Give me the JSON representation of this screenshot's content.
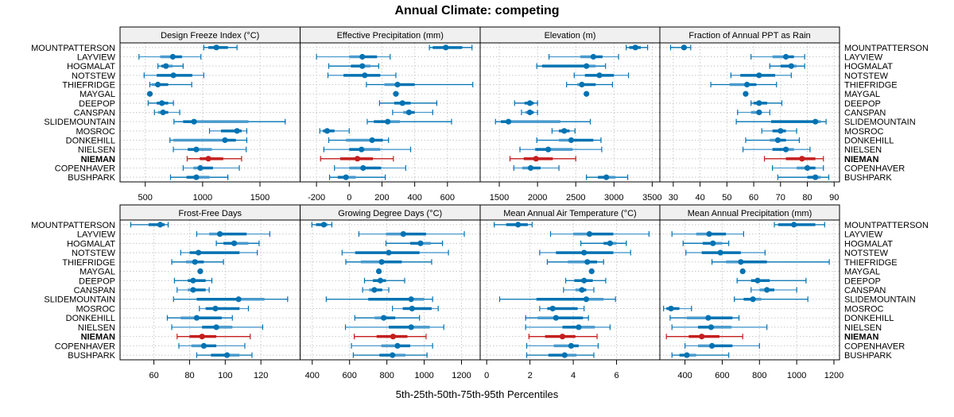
{
  "chart_data": {
    "type": "dot-whisker",
    "title": "Annual Climate: competing",
    "xlabel": "5th-25th-50th-75th-95th Percentiles",
    "highlight": "NIEMAN",
    "colors": {
      "normal": "#0072B2",
      "normal_light": "#4A9ACD",
      "highlight": "#C41E1E",
      "highlight_light": "#D96A6A",
      "strip_bg": "#F0F0F0",
      "grid": "#C8C8C8"
    },
    "categories": [
      "MOUNTPATTERSON",
      "LAYVIEW",
      "HOGMALAT",
      "NOTSTEW",
      "THIEFRIDGE",
      "MAYGAL",
      "DEEPOP",
      "CANSPAN",
      "SLIDEMOUNTAIN",
      "MOSROC",
      "DONKEHILL",
      "NIELSEN",
      "NIEMAN",
      "COPENHAVER",
      "BUSHPARK"
    ],
    "panels": [
      {
        "name": "Design Freeze Index (°C)",
        "ticks": [
          500,
          1000,
          1500
        ],
        "xlim": [
          280,
          1850
        ],
        "values": [
          [
            1010,
            1050,
            1120,
            1220,
            1300
          ],
          [
            445,
            630,
            740,
            820,
            985
          ],
          [
            610,
            640,
            680,
            740,
            830
          ],
          [
            490,
            600,
            745,
            910,
            1010
          ],
          [
            540,
            555,
            610,
            700,
            905
          ],
          [
            540,
            540,
            540,
            540,
            540
          ],
          [
            525,
            600,
            645,
            700,
            745
          ],
          [
            580,
            610,
            655,
            700,
            800
          ],
          [
            750,
            830,
            925,
            1400,
            1720
          ],
          [
            1060,
            1160,
            1300,
            1340,
            1385
          ],
          [
            715,
            745,
            1195,
            1290,
            1385
          ],
          [
            745,
            870,
            945,
            1080,
            1380
          ],
          [
            865,
            975,
            1050,
            1180,
            1340
          ],
          [
            830,
            920,
            980,
            1090,
            1320
          ],
          [
            720,
            860,
            945,
            1060,
            1220
          ]
        ]
      },
      {
        "name": "Effective Precipitation (mm)",
        "ticks": [
          -200,
          0,
          200,
          400,
          600
        ],
        "xlim": [
          -300,
          800
        ],
        "values": [
          [
            490,
            510,
            590,
            690,
            750
          ],
          [
            -200,
            0,
            80,
            170,
            250
          ],
          [
            -125,
            10,
            80,
            130,
            180
          ],
          [
            -130,
            -35,
            95,
            190,
            285
          ],
          [
            105,
            215,
            295,
            400,
            755
          ],
          [
            285,
            285,
            285,
            285,
            285
          ],
          [
            185,
            275,
            325,
            375,
            535
          ],
          [
            265,
            330,
            365,
            400,
            510
          ],
          [
            110,
            150,
            235,
            310,
            625
          ],
          [
            -180,
            -160,
            -135,
            -90,
            0
          ],
          [
            -125,
            -20,
            140,
            205,
            240
          ],
          [
            -155,
            0,
            75,
            190,
            375
          ],
          [
            -175,
            -55,
            50,
            145,
            270
          ],
          [
            -90,
            0,
            85,
            195,
            345
          ],
          [
            -120,
            -70,
            -20,
            40,
            220
          ]
        ]
      },
      {
        "name": "Elevation (m)",
        "ticks": [
          1500,
          2000,
          2500,
          3000,
          3500
        ],
        "xlim": [
          1250,
          3600
        ],
        "values": [
          [
            3160,
            3200,
            3280,
            3350,
            3440
          ],
          [
            2150,
            2560,
            2730,
            2850,
            3060
          ],
          [
            1990,
            2060,
            2640,
            2760,
            2890
          ],
          [
            2480,
            2620,
            2810,
            3000,
            3190
          ],
          [
            2380,
            2520,
            2580,
            2760,
            2980
          ],
          [
            2640,
            2640,
            2640,
            2640,
            2640
          ],
          [
            1700,
            1830,
            1900,
            1950,
            2000
          ],
          [
            1790,
            1840,
            1900,
            1950,
            2000
          ],
          [
            1450,
            1520,
            1620,
            2300,
            2690
          ],
          [
            2190,
            2280,
            2350,
            2420,
            2490
          ],
          [
            1990,
            2280,
            2440,
            2730,
            2830
          ],
          [
            1770,
            1970,
            2140,
            2460,
            2840
          ],
          [
            1640,
            1820,
            1980,
            2200,
            2500
          ],
          [
            1690,
            1800,
            1910,
            2040,
            2280
          ],
          [
            2640,
            2790,
            2900,
            3020,
            3180
          ]
        ]
      },
      {
        "name": "Fraction of Annual PPT as Rain",
        "ticks": [
          30,
          40,
          50,
          60,
          70,
          80,
          90
        ],
        "xlim": [
          25,
          92
        ],
        "values": [
          [
            29,
            33,
            34,
            35,
            36.5
          ],
          [
            59,
            67,
            72,
            75,
            79
          ],
          [
            66,
            70,
            74,
            76,
            79
          ],
          [
            51.5,
            55,
            62,
            68,
            74
          ],
          [
            44,
            51,
            57.5,
            61,
            68.5
          ],
          [
            57,
            57,
            57,
            57,
            57
          ],
          [
            59,
            60,
            62,
            65,
            70.5
          ],
          [
            54,
            59,
            62,
            63,
            66
          ],
          [
            53.5,
            66.5,
            83,
            85,
            87
          ],
          [
            63,
            67,
            70,
            72,
            76
          ],
          [
            57,
            66,
            69,
            72,
            77
          ],
          [
            56,
            67,
            72,
            75,
            81
          ],
          [
            64,
            72,
            78,
            83,
            86
          ],
          [
            67,
            76,
            80,
            83,
            86
          ],
          [
            69,
            80,
            83,
            85,
            88
          ]
        ]
      },
      {
        "name": "Frost-Free Days",
        "ticks": [
          60,
          80,
          100,
          120
        ],
        "xlim": [
          41,
          142
        ],
        "values": [
          [
            47,
            57,
            63.5,
            66,
            68
          ],
          [
            84,
            91,
            97,
            112,
            125
          ],
          [
            95,
            99,
            105,
            113,
            119
          ],
          [
            75,
            80,
            85,
            108,
            118
          ],
          [
            70,
            78,
            83,
            88,
            99
          ],
          [
            86,
            86,
            86,
            86,
            86
          ],
          [
            71.5,
            79,
            82,
            89,
            92.5
          ],
          [
            73,
            79,
            82,
            89,
            91
          ],
          [
            71,
            84,
            107.5,
            122,
            135
          ],
          [
            85.5,
            89,
            94.5,
            108,
            113
          ],
          [
            67.5,
            75,
            84,
            98,
            104
          ],
          [
            70,
            87,
            95,
            104,
            121
          ],
          [
            73,
            80,
            87,
            95,
            114
          ],
          [
            74,
            81,
            88,
            95,
            111
          ],
          [
            84,
            92,
            101,
            108,
            115
          ]
        ]
      },
      {
        "name": "Growing Degree Days (°C)",
        "ticks": [
          400,
          600,
          800,
          1000,
          1200
        ],
        "xlim": [
          335,
          1300
        ],
        "values": [
          [
            398,
            420,
            462,
            480,
            505
          ],
          [
            650,
            795,
            888,
            1010,
            1215
          ],
          [
            795,
            925,
            980,
            1035,
            1098
          ],
          [
            560,
            630,
            810,
            975,
            1130
          ],
          [
            580,
            660,
            772,
            880,
            1040
          ],
          [
            757,
            757,
            757,
            757,
            757
          ],
          [
            680,
            725,
            765,
            795,
            895
          ],
          [
            670,
            705,
            733,
            775,
            810
          ],
          [
            475,
            700,
            930,
            1000,
            1045
          ],
          [
            830,
            885,
            935,
            1040,
            1075
          ],
          [
            628,
            735,
            783,
            845,
            975
          ],
          [
            578,
            810,
            930,
            1030,
            1105
          ],
          [
            625,
            745,
            833,
            910,
            1010
          ],
          [
            610,
            770,
            857,
            925,
            1045
          ],
          [
            620,
            760,
            830,
            900,
            1015
          ]
        ]
      },
      {
        "name": "Mean Annual Air Temperature (°C)",
        "ticks": [
          0,
          2,
          4,
          6
        ],
        "xlim": [
          -0.3,
          8
        ],
        "values": [
          [
            0.35,
            0.9,
            1.45,
            1.9,
            2.1
          ],
          [
            2.95,
            4.0,
            4.75,
            5.85,
            7.5
          ],
          [
            4.35,
            5.4,
            5.7,
            6.0,
            6.45
          ],
          [
            2.45,
            3.2,
            4.5,
            5.85,
            6.65
          ],
          [
            2.8,
            3.75,
            4.65,
            5.1,
            5.4
          ],
          [
            4.85,
            4.85,
            4.85,
            4.85,
            4.85
          ],
          [
            3.65,
            4.05,
            4.5,
            4.9,
            5.5
          ],
          [
            3.55,
            4.1,
            4.4,
            4.6,
            4.95
          ],
          [
            0.6,
            2.3,
            4.6,
            5.4,
            5.95
          ],
          [
            2.45,
            2.8,
            3.05,
            4.2,
            4.5
          ],
          [
            1.8,
            2.35,
            3.2,
            4.45,
            4.7
          ],
          [
            1.8,
            3.5,
            4.25,
            5.0,
            5.7
          ],
          [
            1.95,
            2.7,
            3.5,
            4.1,
            5.1
          ],
          [
            1.85,
            3.1,
            3.9,
            4.25,
            5.15
          ],
          [
            1.85,
            2.85,
            3.6,
            4.15,
            4.95
          ]
        ]
      },
      {
        "name": "Mean Annual Precipitation (mm)",
        "ticks": [
          400,
          600,
          800,
          1000,
          1200
        ],
        "xlim": [
          265,
          1230
        ],
        "values": [
          [
            880,
            900,
            985,
            1100,
            1150
          ],
          [
            330,
            460,
            530,
            620,
            715
          ],
          [
            390,
            495,
            550,
            600,
            635
          ],
          [
            405,
            490,
            590,
            700,
            830
          ],
          [
            545,
            620,
            700,
            840,
            1175
          ],
          [
            710,
            710,
            710,
            710,
            710
          ],
          [
            680,
            755,
            790,
            855,
            1050
          ],
          [
            755,
            800,
            840,
            880,
            1000
          ],
          [
            665,
            715,
            765,
            810,
            1060
          ],
          [
            285,
            300,
            325,
            370,
            435
          ],
          [
            320,
            410,
            525,
            655,
            690
          ],
          [
            330,
            470,
            540,
            650,
            840
          ],
          [
            300,
            420,
            490,
            585,
            710
          ],
          [
            400,
            470,
            545,
            655,
            800
          ],
          [
            330,
            370,
            410,
            460,
            635
          ]
        ]
      }
    ]
  }
}
